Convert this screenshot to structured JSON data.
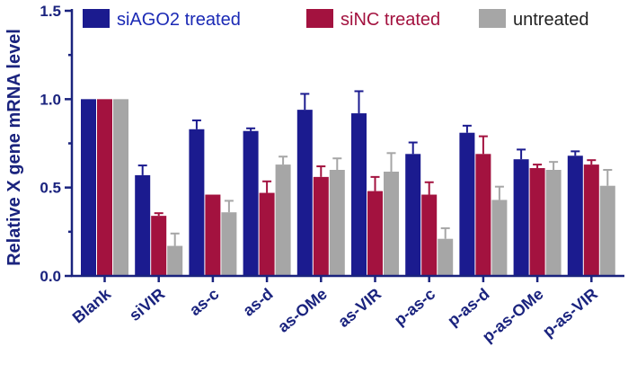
{
  "chart_data": {
    "type": "bar",
    "title": "",
    "xlabel": "",
    "ylabel": "Relative X gene mRNA level",
    "ylim": [
      0,
      1.5
    ],
    "yticks": [
      "0.0",
      "0.5",
      "1.0",
      "1.5"
    ],
    "grid": false,
    "legend_position": "top",
    "categories": [
      "Blank",
      "siVIR",
      "as-c",
      "as-d",
      "as-OMe",
      "as-VIR",
      "p-as-c",
      "p-as-d",
      "p-as-OMe",
      "p-as-VIR"
    ],
    "series": [
      {
        "name": "siAGO2 treated",
        "color": "#1b1b8f",
        "legend_text_color": "#1b2ab5",
        "values": [
          1.0,
          0.57,
          0.83,
          0.82,
          0.94,
          0.92,
          0.69,
          0.81,
          0.66,
          0.68
        ],
        "errors": [
          0,
          0.055,
          0.05,
          0.015,
          0.09,
          0.125,
          0.065,
          0.04,
          0.055,
          0.025
        ]
      },
      {
        "name": "siNC treated",
        "color": "#a3123f",
        "legend_text_color": "#a3123f",
        "values": [
          1.0,
          0.34,
          0.46,
          0.47,
          0.56,
          0.48,
          0.46,
          0.69,
          0.61,
          0.63
        ],
        "errors": [
          0,
          0.015,
          0,
          0.065,
          0.06,
          0.08,
          0.07,
          0.1,
          0.02,
          0.025
        ]
      },
      {
        "name": "untreated",
        "color": "#a6a6a6",
        "legend_text_color": "#222222",
        "values": [
          1.0,
          0.17,
          0.36,
          0.63,
          0.6,
          0.59,
          0.21,
          0.43,
          0.6,
          0.51
        ],
        "errors": [
          0,
          0.07,
          0.065,
          0.045,
          0.065,
          0.105,
          0.06,
          0.075,
          0.045,
          0.09
        ]
      }
    ]
  }
}
